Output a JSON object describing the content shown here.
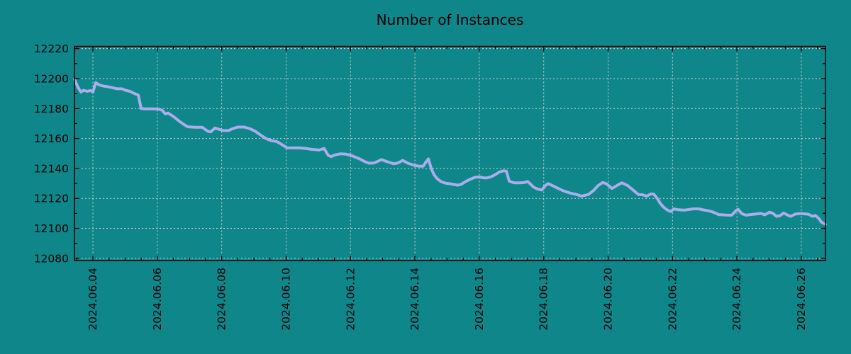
{
  "figure": {
    "title": "Number of Instances",
    "background_color": "#0f868a",
    "line_color": "#a9ade9",
    "grid_color": "#d4d4d4",
    "axis_color": "#000000",
    "text_color": "#000000"
  },
  "chart_data": {
    "type": "line",
    "title": "Number of Instances",
    "xlabel": "",
    "ylabel": "",
    "x_unit": "fractional day of June 2024",
    "xlim": [
      3.427,
      26.75
    ],
    "ylim": [
      12078.5,
      12221.5
    ],
    "grid": true,
    "legend_position": "none",
    "x_major_ticks": [
      4,
      6,
      8,
      10,
      12,
      14,
      16,
      18,
      20,
      22,
      24,
      26
    ],
    "x_tick_labels": [
      "2024.06.04",
      "2024.06.06",
      "2024.06.08",
      "2024.06.10",
      "2024.06.12",
      "2024.06.14",
      "2024.06.16",
      "2024.06.18",
      "2024.06.20",
      "2024.06.22",
      "2024.06.24",
      "2024.06.26"
    ],
    "x_minor_step": 0.5,
    "y_major_ticks": [
      12080,
      12100,
      12120,
      12140,
      12160,
      12180,
      12200,
      12220
    ],
    "y_tick_labels": [
      "12080",
      "12100",
      "12120",
      "12140",
      "12160",
      "12180",
      "12200",
      "12220"
    ],
    "y_minor_step": 10,
    "series": [
      {
        "name": "instances",
        "points": [
          [
            3.43,
            12199.5
          ],
          [
            3.54,
            12194
          ],
          [
            3.63,
            12191
          ],
          [
            3.71,
            12192.2
          ],
          [
            3.82,
            12191.5
          ],
          [
            3.93,
            12192
          ],
          [
            4.0,
            12191
          ],
          [
            4.09,
            12197.3
          ],
          [
            4.2,
            12195.7
          ],
          [
            4.33,
            12195
          ],
          [
            4.46,
            12194.6
          ],
          [
            4.59,
            12194
          ],
          [
            4.75,
            12193.2
          ],
          [
            4.9,
            12193.2
          ],
          [
            5.01,
            12192.2
          ],
          [
            5.15,
            12191.5
          ],
          [
            5.26,
            12190.3
          ],
          [
            5.41,
            12189
          ],
          [
            5.5,
            12180
          ],
          [
            5.63,
            12179.8
          ],
          [
            5.85,
            12179.8
          ],
          [
            6.03,
            12179.6
          ],
          [
            6.14,
            12179
          ],
          [
            6.25,
            12176.4
          ],
          [
            6.33,
            12177
          ],
          [
            6.51,
            12174.5
          ],
          [
            6.69,
            12171.4
          ],
          [
            6.84,
            12169.1
          ],
          [
            6.95,
            12167.8
          ],
          [
            7.17,
            12167.5
          ],
          [
            7.39,
            12167.5
          ],
          [
            7.57,
            12164.8
          ],
          [
            7.66,
            12164.4
          ],
          [
            7.79,
            12167
          ],
          [
            7.88,
            12166.4
          ],
          [
            8.05,
            12165.3
          ],
          [
            8.21,
            12165.3
          ],
          [
            8.32,
            12166.4
          ],
          [
            8.49,
            12167.6
          ],
          [
            8.71,
            12167.6
          ],
          [
            8.89,
            12166.4
          ],
          [
            9.04,
            12164.8
          ],
          [
            9.2,
            12162.4
          ],
          [
            9.37,
            12160
          ],
          [
            9.55,
            12158.5
          ],
          [
            9.7,
            12158
          ],
          [
            9.84,
            12156.3
          ],
          [
            10.03,
            12153.8
          ],
          [
            10.21,
            12153.7
          ],
          [
            10.37,
            12153.8
          ],
          [
            10.59,
            12153.4
          ],
          [
            10.81,
            12152.7
          ],
          [
            11.03,
            12152.3
          ],
          [
            11.18,
            12153.4
          ],
          [
            11.31,
            12148.7
          ],
          [
            11.4,
            12147.9
          ],
          [
            11.51,
            12149
          ],
          [
            11.69,
            12149.8
          ],
          [
            11.84,
            12149.6
          ],
          [
            12.02,
            12148.7
          ],
          [
            12.17,
            12147.4
          ],
          [
            12.3,
            12146.2
          ],
          [
            12.43,
            12144.7
          ],
          [
            12.57,
            12143.5
          ],
          [
            12.72,
            12143.6
          ],
          [
            12.85,
            12144.8
          ],
          [
            12.96,
            12145.9
          ],
          [
            13.07,
            12145
          ],
          [
            13.21,
            12144
          ],
          [
            13.34,
            12143.1
          ],
          [
            13.45,
            12143.5
          ],
          [
            13.56,
            12144.6
          ],
          [
            13.62,
            12145.4
          ],
          [
            13.78,
            12143.5
          ],
          [
            13.95,
            12142.3
          ],
          [
            14.11,
            12141.5
          ],
          [
            14.26,
            12141.5
          ],
          [
            14.35,
            12144.5
          ],
          [
            14.42,
            12146.4
          ],
          [
            14.51,
            12139.8
          ],
          [
            14.59,
            12136
          ],
          [
            14.68,
            12133.4
          ],
          [
            14.81,
            12131.2
          ],
          [
            14.94,
            12130.2
          ],
          [
            15.08,
            12129.8
          ],
          [
            15.21,
            12129.3
          ],
          [
            15.32,
            12128.8
          ],
          [
            15.43,
            12129.3
          ],
          [
            15.58,
            12131.3
          ],
          [
            15.72,
            12132.8
          ],
          [
            15.87,
            12134.1
          ],
          [
            16.0,
            12134.3
          ],
          [
            16.11,
            12133.8
          ],
          [
            16.22,
            12133.6
          ],
          [
            16.36,
            12134.4
          ],
          [
            16.49,
            12135.8
          ],
          [
            16.62,
            12137.6
          ],
          [
            16.75,
            12138.4
          ],
          [
            16.84,
            12138.2
          ],
          [
            16.93,
            12131.5
          ],
          [
            17.08,
            12130.4
          ],
          [
            17.26,
            12130.4
          ],
          [
            17.41,
            12130.6
          ],
          [
            17.5,
            12131.3
          ],
          [
            17.59,
            12129.5
          ],
          [
            17.68,
            12127.6
          ],
          [
            17.81,
            12126.2
          ],
          [
            17.94,
            12125.6
          ],
          [
            18.07,
            12129
          ],
          [
            18.14,
            12129.9
          ],
          [
            18.36,
            12127.6
          ],
          [
            18.58,
            12125.3
          ],
          [
            18.8,
            12123.7
          ],
          [
            19.02,
            12122.6
          ],
          [
            19.17,
            12121.5
          ],
          [
            19.39,
            12122.6
          ],
          [
            19.55,
            12125.3
          ],
          [
            19.68,
            12128.4
          ],
          [
            19.83,
            12130.6
          ],
          [
            19.94,
            12129.9
          ],
          [
            20.12,
            12126.6
          ],
          [
            20.34,
            12129.4
          ],
          [
            20.43,
            12130.4
          ],
          [
            20.61,
            12128.5
          ],
          [
            20.78,
            12125.5
          ],
          [
            20.94,
            12122.6
          ],
          [
            21.07,
            12122.4
          ],
          [
            21.2,
            12121.5
          ],
          [
            21.33,
            12123
          ],
          [
            21.42,
            12122.8
          ],
          [
            21.53,
            12119.8
          ],
          [
            21.62,
            12116.6
          ],
          [
            21.73,
            12114
          ],
          [
            21.84,
            12112.2
          ],
          [
            21.95,
            12111.2
          ],
          [
            22.04,
            12113
          ],
          [
            22.15,
            12112.5
          ],
          [
            22.26,
            12112.3
          ],
          [
            22.39,
            12112.2
          ],
          [
            22.52,
            12112.6
          ],
          [
            22.65,
            12113
          ],
          [
            22.81,
            12113
          ],
          [
            22.96,
            12112.3
          ],
          [
            23.07,
            12111.9
          ],
          [
            23.21,
            12111.2
          ],
          [
            23.32,
            12110.3
          ],
          [
            23.43,
            12109.2
          ],
          [
            23.58,
            12109
          ],
          [
            23.71,
            12108.8
          ],
          [
            23.84,
            12108.8
          ],
          [
            23.98,
            12112
          ],
          [
            24.04,
            12112.7
          ],
          [
            24.15,
            12109.8
          ],
          [
            24.28,
            12108.8
          ],
          [
            24.42,
            12109.2
          ],
          [
            24.57,
            12109.5
          ],
          [
            24.75,
            12110
          ],
          [
            24.86,
            12109
          ],
          [
            25.01,
            12110.8
          ],
          [
            25.12,
            12110
          ],
          [
            25.23,
            12108
          ],
          [
            25.34,
            12108.5
          ],
          [
            25.45,
            12110.2
          ],
          [
            25.56,
            12109
          ],
          [
            25.67,
            12108
          ],
          [
            25.81,
            12109.5
          ],
          [
            25.96,
            12109.9
          ],
          [
            26.09,
            12109.7
          ],
          [
            26.22,
            12109.4
          ],
          [
            26.35,
            12108
          ],
          [
            26.44,
            12108.6
          ],
          [
            26.55,
            12106.5
          ],
          [
            26.62,
            12104.2
          ],
          [
            26.75,
            12102.7
          ]
        ]
      }
    ]
  }
}
